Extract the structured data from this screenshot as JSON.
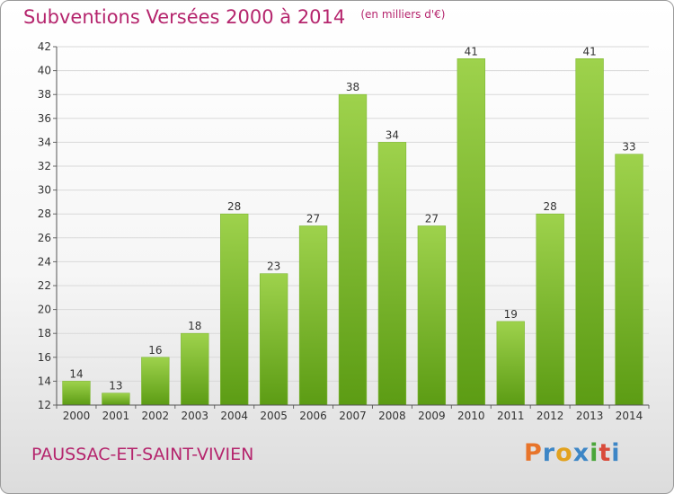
{
  "header": {
    "title": "Subventions Versées 2000 à 2014",
    "subtitle": "(en milliers d'€)"
  },
  "footer": {
    "place": "PAUSSAC-ET-SAINT-VIVIEN",
    "logo_text": "Proxiti",
    "logo_colors": [
      "#e8742a",
      "#3d86c6",
      "#e2a21e",
      "#3d86c6",
      "#4aa63a",
      "#d94b3b",
      "#3d86c6"
    ]
  },
  "colors": {
    "accent": "#b5256d",
    "bar_top": "#9ed24c",
    "bar_bottom": "#5c9c14",
    "grid": "#d9d9d9",
    "axis_text": "#333333"
  },
  "chart_data": {
    "type": "bar",
    "title": "Subventions Versées 2000 à 2014",
    "subtitle": "(en milliers d'€)",
    "categories": [
      "2000",
      "2001",
      "2002",
      "2003",
      "2004",
      "2005",
      "2006",
      "2007",
      "2008",
      "2009",
      "2010",
      "2011",
      "2012",
      "2013",
      "2014"
    ],
    "values": [
      14,
      13,
      16,
      18,
      28,
      23,
      27,
      38,
      34,
      27,
      41,
      19,
      28,
      41,
      33
    ],
    "ylim": [
      12,
      42
    ],
    "yticks": [
      12,
      14,
      16,
      18,
      20,
      22,
      24,
      26,
      28,
      30,
      32,
      34,
      36,
      38,
      40,
      42
    ],
    "grid": true,
    "data_labels": true,
    "legend": "none"
  }
}
